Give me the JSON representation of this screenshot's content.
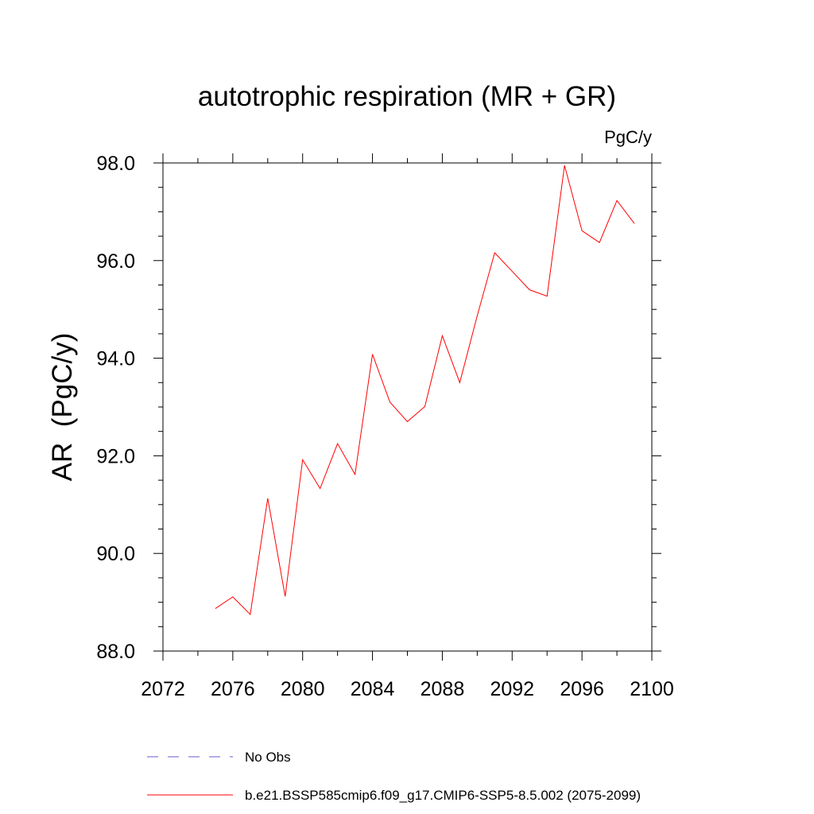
{
  "chart_data": {
    "type": "line",
    "title": "autotrophic respiration (MR + GR)",
    "units_label": "PgC/y",
    "ylabel": "AR  (PgC/y)",
    "xlabel": "",
    "xlim": [
      2072,
      2100
    ],
    "ylim": [
      88.0,
      98.0
    ],
    "x_ticks": [
      "2072",
      "2076",
      "2080",
      "2084",
      "2088",
      "2092",
      "2096",
      "2100"
    ],
    "y_ticks": [
      "88.0",
      "90.0",
      "92.0",
      "94.0",
      "96.0",
      "98.0"
    ],
    "x": [
      2075,
      2076,
      2077,
      2078,
      2079,
      2080,
      2081,
      2082,
      2083,
      2084,
      2085,
      2086,
      2087,
      2088,
      2089,
      2090,
      2091,
      2092,
      2093,
      2094,
      2095,
      2096,
      2097,
      2098,
      2099
    ],
    "series": [
      {
        "name": "b.e21.BSSP585cmip6.f09_g17.CMIP6-SSP5-8.5.002 (2075-2099)",
        "color": "#ff0000",
        "values": [
          88.87,
          89.11,
          88.75,
          91.13,
          89.12,
          91.92,
          91.33,
          92.25,
          91.62,
          94.08,
          93.1,
          92.7,
          93.01,
          94.46,
          93.5,
          94.87,
          96.16,
          95.78,
          95.4,
          95.27,
          97.95,
          96.61,
          96.37,
          97.23,
          96.76
        ]
      }
    ],
    "legend": [
      {
        "label": "No Obs",
        "style": "dashed",
        "color": "#6a5acd"
      },
      {
        "label": "b.e21.BSSP585cmip6.f09_g17.CMIP6-SSP5-8.5.002 (2075-2099)",
        "style": "solid",
        "color": "#ff0000"
      }
    ],
    "grid": false,
    "legend_placement": "bottom"
  }
}
